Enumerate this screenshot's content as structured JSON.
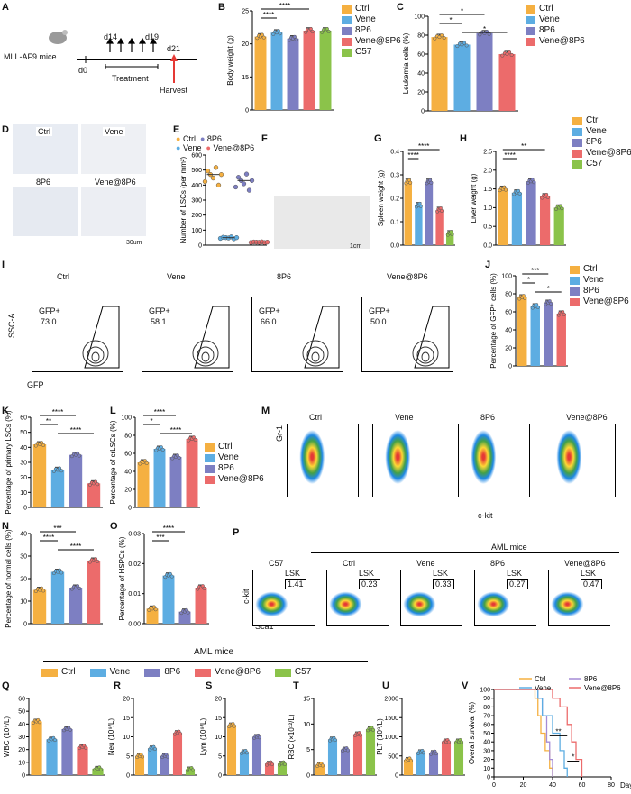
{
  "panels": {
    "A": {
      "label": "A",
      "mouse": "MLL-AF9 mice",
      "d0": "d0",
      "d14": "d14",
      "d19": "d19",
      "d21": "d21",
      "treatment": "Treatment",
      "harvest": "Harvest"
    },
    "B": {
      "label": "B",
      "ylabel": "Body weight (g)",
      "sig1": "****",
      "sig2": "****"
    },
    "C": {
      "label": "C",
      "ylabel": "Leukemia cells (%)",
      "sig1": "*",
      "sig2": "*",
      "sig3": "*"
    },
    "D": {
      "label": "D",
      "ctrl": "Ctrl",
      "vene": "Vene",
      "p86": "8P6",
      "combo": "Vene@8P6",
      "scale": "30um"
    },
    "E": {
      "label": "E",
      "ylabel": "Number of LSCs (per mm²)"
    },
    "F": {
      "label": "F",
      "scale": "1cm"
    },
    "G": {
      "label": "G",
      "ylabel": "Spleen weight (g)",
      "sig1": "****",
      "sig2": "****"
    },
    "H": {
      "label": "H",
      "ylabel": "Liver weight (g)",
      "sig1": "**",
      "sig2": "****"
    },
    "I": {
      "label": "I",
      "yaxis": "SSC-A",
      "xaxis": "GFP",
      "gates": [
        {
          "name": "Ctrl",
          "gate": "GFP+",
          "val": "73.0"
        },
        {
          "name": "Vene",
          "gate": "GFP+",
          "val": "58.1"
        },
        {
          "name": "8P6",
          "gate": "GFP+",
          "val": "66.0"
        },
        {
          "name": "Vene@8P6",
          "gate": "GFP+",
          "val": "50.0"
        }
      ]
    },
    "J": {
      "label": "J",
      "ylabel": "Percentage of GFP⁺ cells (%)",
      "sig1": "***",
      "sig2": "*",
      "sig3": "*"
    },
    "K": {
      "label": "K",
      "ylabel": "Percentage of primary LSCs (%)",
      "sig1": "****",
      "sig2": "**",
      "sig3": "****"
    },
    "L": {
      "label": "L",
      "ylabel": "Percentage of crLSCs (%)",
      "sig1": "****",
      "sig2": "*",
      "sig3": "****"
    },
    "M": {
      "label": "M",
      "yaxis": "Gr-1",
      "xaxis": "c-kit",
      "names": [
        "Ctrl",
        "Vene",
        "8P6",
        "Vene@8P6"
      ]
    },
    "N": {
      "label": "N",
      "ylabel": "Percentage of normal cells (%)",
      "sig1": "***",
      "sig2": "****",
      "sig3": "****"
    },
    "O": {
      "label": "O",
      "ylabel": "Percentage of HSPCs (%)",
      "sig1": "****",
      "sig2": "***"
    },
    "P": {
      "label": "P",
      "group": "AML mice",
      "yaxis": "c-kit",
      "xaxis": "Sca1",
      "plots": [
        {
          "name": "C57",
          "gate": "LSK",
          "val": "1.41"
        },
        {
          "name": "Ctrl",
          "gate": "LSK",
          "val": "0.23"
        },
        {
          "name": "Vene",
          "gate": "LSK",
          "val": "0.33"
        },
        {
          "name": "8P6",
          "gate": "LSK",
          "val": "0.27"
        },
        {
          "name": "Vene@8P6",
          "gate": "LSK",
          "val": "0.47"
        }
      ]
    },
    "Q": {
      "label": "Q",
      "ylabel": "WBC (10⁹/L)"
    },
    "R": {
      "label": "R",
      "ylabel": "Neu (10⁹/L)"
    },
    "S": {
      "label": "S",
      "ylabel": "Lym (10⁹/L)"
    },
    "T": {
      "label": "T",
      "ylabel": "RBC (×10¹²/L)"
    },
    "U": {
      "label": "U",
      "ylabel": "PLT (10⁹/L)"
    },
    "V": {
      "label": "V",
      "ylabel": "Overall survival (%)",
      "xlabel": "Day",
      "sig1": "**",
      "sig2": "*"
    }
  },
  "legend5": [
    {
      "name": "Ctrl",
      "color": "#F5B041"
    },
    {
      "name": "Vene",
      "color": "#5DADE2"
    },
    {
      "name": "8P6",
      "color": "#7D7FC2"
    },
    {
      "name": "Vene@8P6",
      "color": "#EC6B6B"
    },
    {
      "name": "C57",
      "color": "#8BC34A"
    }
  ],
  "bottom_group_label": "AML mice",
  "survival_legend": [
    {
      "name": "Ctrl",
      "color": "#F5B041"
    },
    {
      "name": "8P6",
      "color": "#A48BD6"
    },
    {
      "name": "Vene",
      "color": "#5DADE2"
    },
    {
      "name": "Vene@8P6",
      "color": "#EC6B6B"
    }
  ],
  "chart_data": [
    {
      "id": "B",
      "type": "bar",
      "categories": [
        "Ctrl",
        "Vene",
        "8P6",
        "Vene@8P6",
        "C57"
      ],
      "values": [
        18.5,
        19.5,
        18,
        20,
        20
      ],
      "ylabel": "Body weight (g)",
      "yticks": [
        "0",
        "15",
        "20",
        "25"
      ],
      "ylim": [
        0,
        25
      ]
    },
    {
      "id": "C",
      "type": "bar",
      "categories": [
        "Ctrl",
        "Vene",
        "8P6",
        "Vene@8P6"
      ],
      "values": [
        78,
        70,
        82,
        60
      ],
      "ylabel": "Leukemia cells (%)",
      "yticks": [
        "0",
        "20",
        "40",
        "60",
        "80",
        "100"
      ],
      "ylim": [
        0,
        100
      ]
    },
    {
      "id": "E",
      "type": "scatter",
      "categories": [
        "Ctrl",
        "Vene",
        "8P6",
        "Vene@8P6"
      ],
      "values": [
        470,
        50,
        430,
        20
      ],
      "ylabel": "Number of LSCs (per mm²)",
      "yticks": [
        "0",
        "100",
        "200",
        "300",
        "400",
        "500",
        "600"
      ],
      "ylim": [
        0,
        600
      ]
    },
    {
      "id": "G",
      "type": "bar",
      "categories": [
        "Ctrl",
        "Vene",
        "8P6",
        "Vene@8P6",
        "C57"
      ],
      "values": [
        0.27,
        0.17,
        0.27,
        0.15,
        0.05
      ],
      "ylabel": "Spleen weight (g)",
      "yticks": [
        "0.0",
        "0.1",
        "0.2",
        "0.3",
        "0.4"
      ],
      "ylim": [
        0,
        0.4
      ]
    },
    {
      "id": "H",
      "type": "bar",
      "categories": [
        "Ctrl",
        "Vene",
        "8P6",
        "Vene@8P6",
        "C57"
      ],
      "values": [
        1.5,
        1.4,
        1.7,
        1.3,
        1.0
      ],
      "ylabel": "Liver weight (g)",
      "yticks": [
        "0.0",
        "0.5",
        "1.0",
        "1.5",
        "2.0",
        "2.5"
      ],
      "ylim": [
        0,
        2.5
      ]
    },
    {
      "id": "J",
      "type": "bar",
      "categories": [
        "Ctrl",
        "Vene",
        "8P6",
        "Vene@8P6"
      ],
      "values": [
        76,
        66,
        70,
        58
      ],
      "ylabel": "Percentage of GFP⁺ cells (%)",
      "yticks": [
        "0",
        "20",
        "40",
        "60",
        "80",
        "100"
      ],
      "ylim": [
        0,
        100
      ]
    },
    {
      "id": "K",
      "type": "bar",
      "categories": [
        "Ctrl",
        "Vene",
        "8P6",
        "Vene@8P6"
      ],
      "values": [
        42,
        25,
        35,
        16
      ],
      "ylabel": "Percentage of primary LSCs (%)",
      "yticks": [
        "0",
        "10",
        "20",
        "30",
        "40",
        "50",
        "60"
      ],
      "ylim": [
        0,
        60
      ]
    },
    {
      "id": "L",
      "type": "bar",
      "categories": [
        "Ctrl",
        "Vene",
        "8P6",
        "Vene@8P6"
      ],
      "values": [
        50,
        65,
        56,
        76
      ],
      "ylabel": "Percentage of crLSCs (%)",
      "yticks": [
        "0",
        "20",
        "40",
        "60",
        "80",
        "100"
      ],
      "ylim": [
        0,
        100
      ]
    },
    {
      "id": "N",
      "type": "bar",
      "categories": [
        "Ctrl",
        "Vene",
        "8P6",
        "Vene@8P6"
      ],
      "values": [
        15,
        23,
        16,
        28
      ],
      "ylabel": "Percentage of normal cells (%)",
      "yticks": [
        "0",
        "10",
        "20",
        "30",
        "40"
      ],
      "ylim": [
        0,
        40
      ]
    },
    {
      "id": "O",
      "type": "bar",
      "categories": [
        "Ctrl",
        "Vene",
        "8P6",
        "Vene@8P6"
      ],
      "values": [
        0.005,
        0.016,
        0.004,
        0.012
      ],
      "ylabel": "Percentage of HSPCs (%)",
      "yticks": [
        "0.00",
        "0.01",
        "0.02",
        "0.03"
      ],
      "ylim": [
        0,
        0.03
      ]
    },
    {
      "id": "Q",
      "type": "bar",
      "categories": [
        "Ctrl",
        "Vene",
        "8P6",
        "Vene@8P6",
        "C57"
      ],
      "values": [
        42,
        28,
        36,
        22,
        5
      ],
      "ylabel": "WBC (10⁹/L)",
      "yticks": [
        "0",
        "10",
        "20",
        "30",
        "40",
        "50",
        "60"
      ],
      "ylim": [
        0,
        60
      ]
    },
    {
      "id": "R",
      "type": "bar",
      "categories": [
        "Ctrl",
        "Vene",
        "8P6",
        "Vene@8P6",
        "C57"
      ],
      "values": [
        5,
        7,
        5,
        11,
        1.5
      ],
      "ylabel": "Neu (10⁹/L)",
      "yticks": [
        "0",
        "5",
        "10",
        "15",
        "20"
      ],
      "ylim": [
        0,
        20
      ]
    },
    {
      "id": "S",
      "type": "bar",
      "categories": [
        "Ctrl",
        "Vene",
        "8P6",
        "Vene@8P6",
        "C57"
      ],
      "values": [
        13,
        6,
        10,
        3,
        3
      ],
      "ylabel": "Lym (10⁹/L)",
      "yticks": [
        "0",
        "5",
        "10",
        "15",
        "20"
      ],
      "ylim": [
        0,
        20
      ]
    },
    {
      "id": "T",
      "type": "bar",
      "categories": [
        "Ctrl",
        "Vene",
        "8P6",
        "Vene@8P6",
        "C57"
      ],
      "values": [
        2,
        7,
        5,
        8,
        9
      ],
      "ylabel": "RBC (×10¹²/L)",
      "yticks": [
        "0",
        "5",
        "10",
        "15"
      ],
      "ylim": [
        0,
        15
      ]
    },
    {
      "id": "U",
      "type": "bar",
      "categories": [
        "Ctrl",
        "Vene",
        "8P6",
        "Vene@8P6",
        "C57"
      ],
      "values": [
        400,
        600,
        580,
        880,
        880
      ],
      "ylabel": "PLT (10⁹/L)",
      "yticks": [
        "0",
        "500",
        "1000",
        "1500",
        "2000"
      ],
      "ylim": [
        0,
        2000
      ]
    },
    {
      "id": "V",
      "type": "line",
      "xlabel": "Day",
      "ylabel": "Overall survival (%)",
      "xticks": [
        "0",
        "20",
        "40",
        "60",
        "80"
      ],
      "yticks": [
        "0",
        "10",
        "20",
        "30",
        "40",
        "50",
        "60",
        "70",
        "80",
        "90",
        "100"
      ],
      "xlim": [
        0,
        80
      ],
      "ylim": [
        0,
        100
      ],
      "series": [
        {
          "name": "Ctrl",
          "x": [
            0,
            28,
            30,
            32,
            35,
            38,
            40
          ],
          "y": [
            100,
            90,
            70,
            50,
            30,
            10,
            0
          ]
        },
        {
          "name": "8P6",
          "x": [
            0,
            30,
            33,
            36,
            38,
            40
          ],
          "y": [
            100,
            90,
            70,
            40,
            20,
            0
          ]
        },
        {
          "name": "Vene",
          "x": [
            0,
            30,
            33,
            40,
            45,
            48,
            50
          ],
          "y": [
            100,
            90,
            70,
            50,
            30,
            10,
            0
          ]
        },
        {
          "name": "Vene@8P6",
          "x": [
            0,
            40,
            45,
            50,
            53,
            56,
            60
          ],
          "y": [
            100,
            90,
            80,
            60,
            40,
            20,
            0
          ]
        }
      ]
    }
  ]
}
